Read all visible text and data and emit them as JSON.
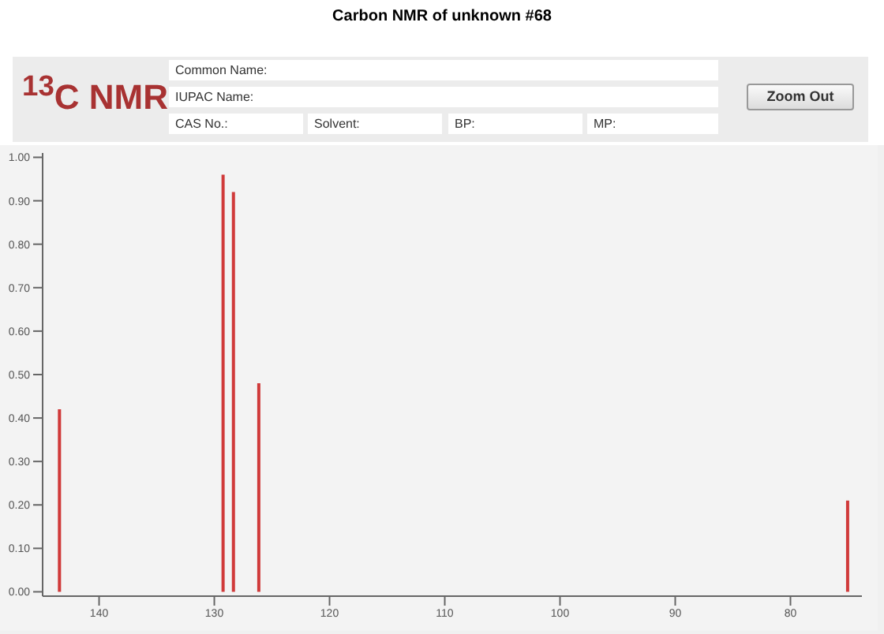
{
  "chart_data": {
    "type": "bar",
    "title": "Carbon NMR of unknown #68",
    "annotations": [
      "$^{13}$C NMR",
      "Common Name:",
      "IUPAC Name:",
      "CAS No.:",
      "Solvent:",
      "BP:",
      "MP:",
      "Zoom Out"
    ],
    "x": [
      143.4,
      129.2,
      128.3,
      126.1,
      75.0
    ],
    "values": [
      0.42,
      0.96,
      0.92,
      0.48,
      0.21
    ],
    "color": "#d03a3a",
    "xlim": [
      144.9,
      73.8
    ],
    "xticks": [
      140,
      130,
      120,
      110,
      100,
      90,
      80
    ],
    "ylim": [
      -0.01,
      1.01
    ],
    "yticks": [
      {
        "value": 0,
        "label": "0.00"
      },
      {
        "value": 0.1,
        "label": "0.10"
      },
      {
        "value": 0.2,
        "label": "0.20"
      },
      {
        "value": 0.3,
        "label": "0.30"
      },
      {
        "value": 0.4,
        "label": "0.40"
      },
      {
        "value": 0.5,
        "label": "0.50"
      },
      {
        "value": 0.6,
        "label": "0.60"
      },
      {
        "value": 0.7,
        "label": "0.70"
      },
      {
        "value": 0.8,
        "label": "0.80"
      },
      {
        "value": 0.9,
        "label": "0.90"
      },
      {
        "value": 1,
        "label": "1.00"
      }
    ],
    "grid": false,
    "legend": false
  }
}
